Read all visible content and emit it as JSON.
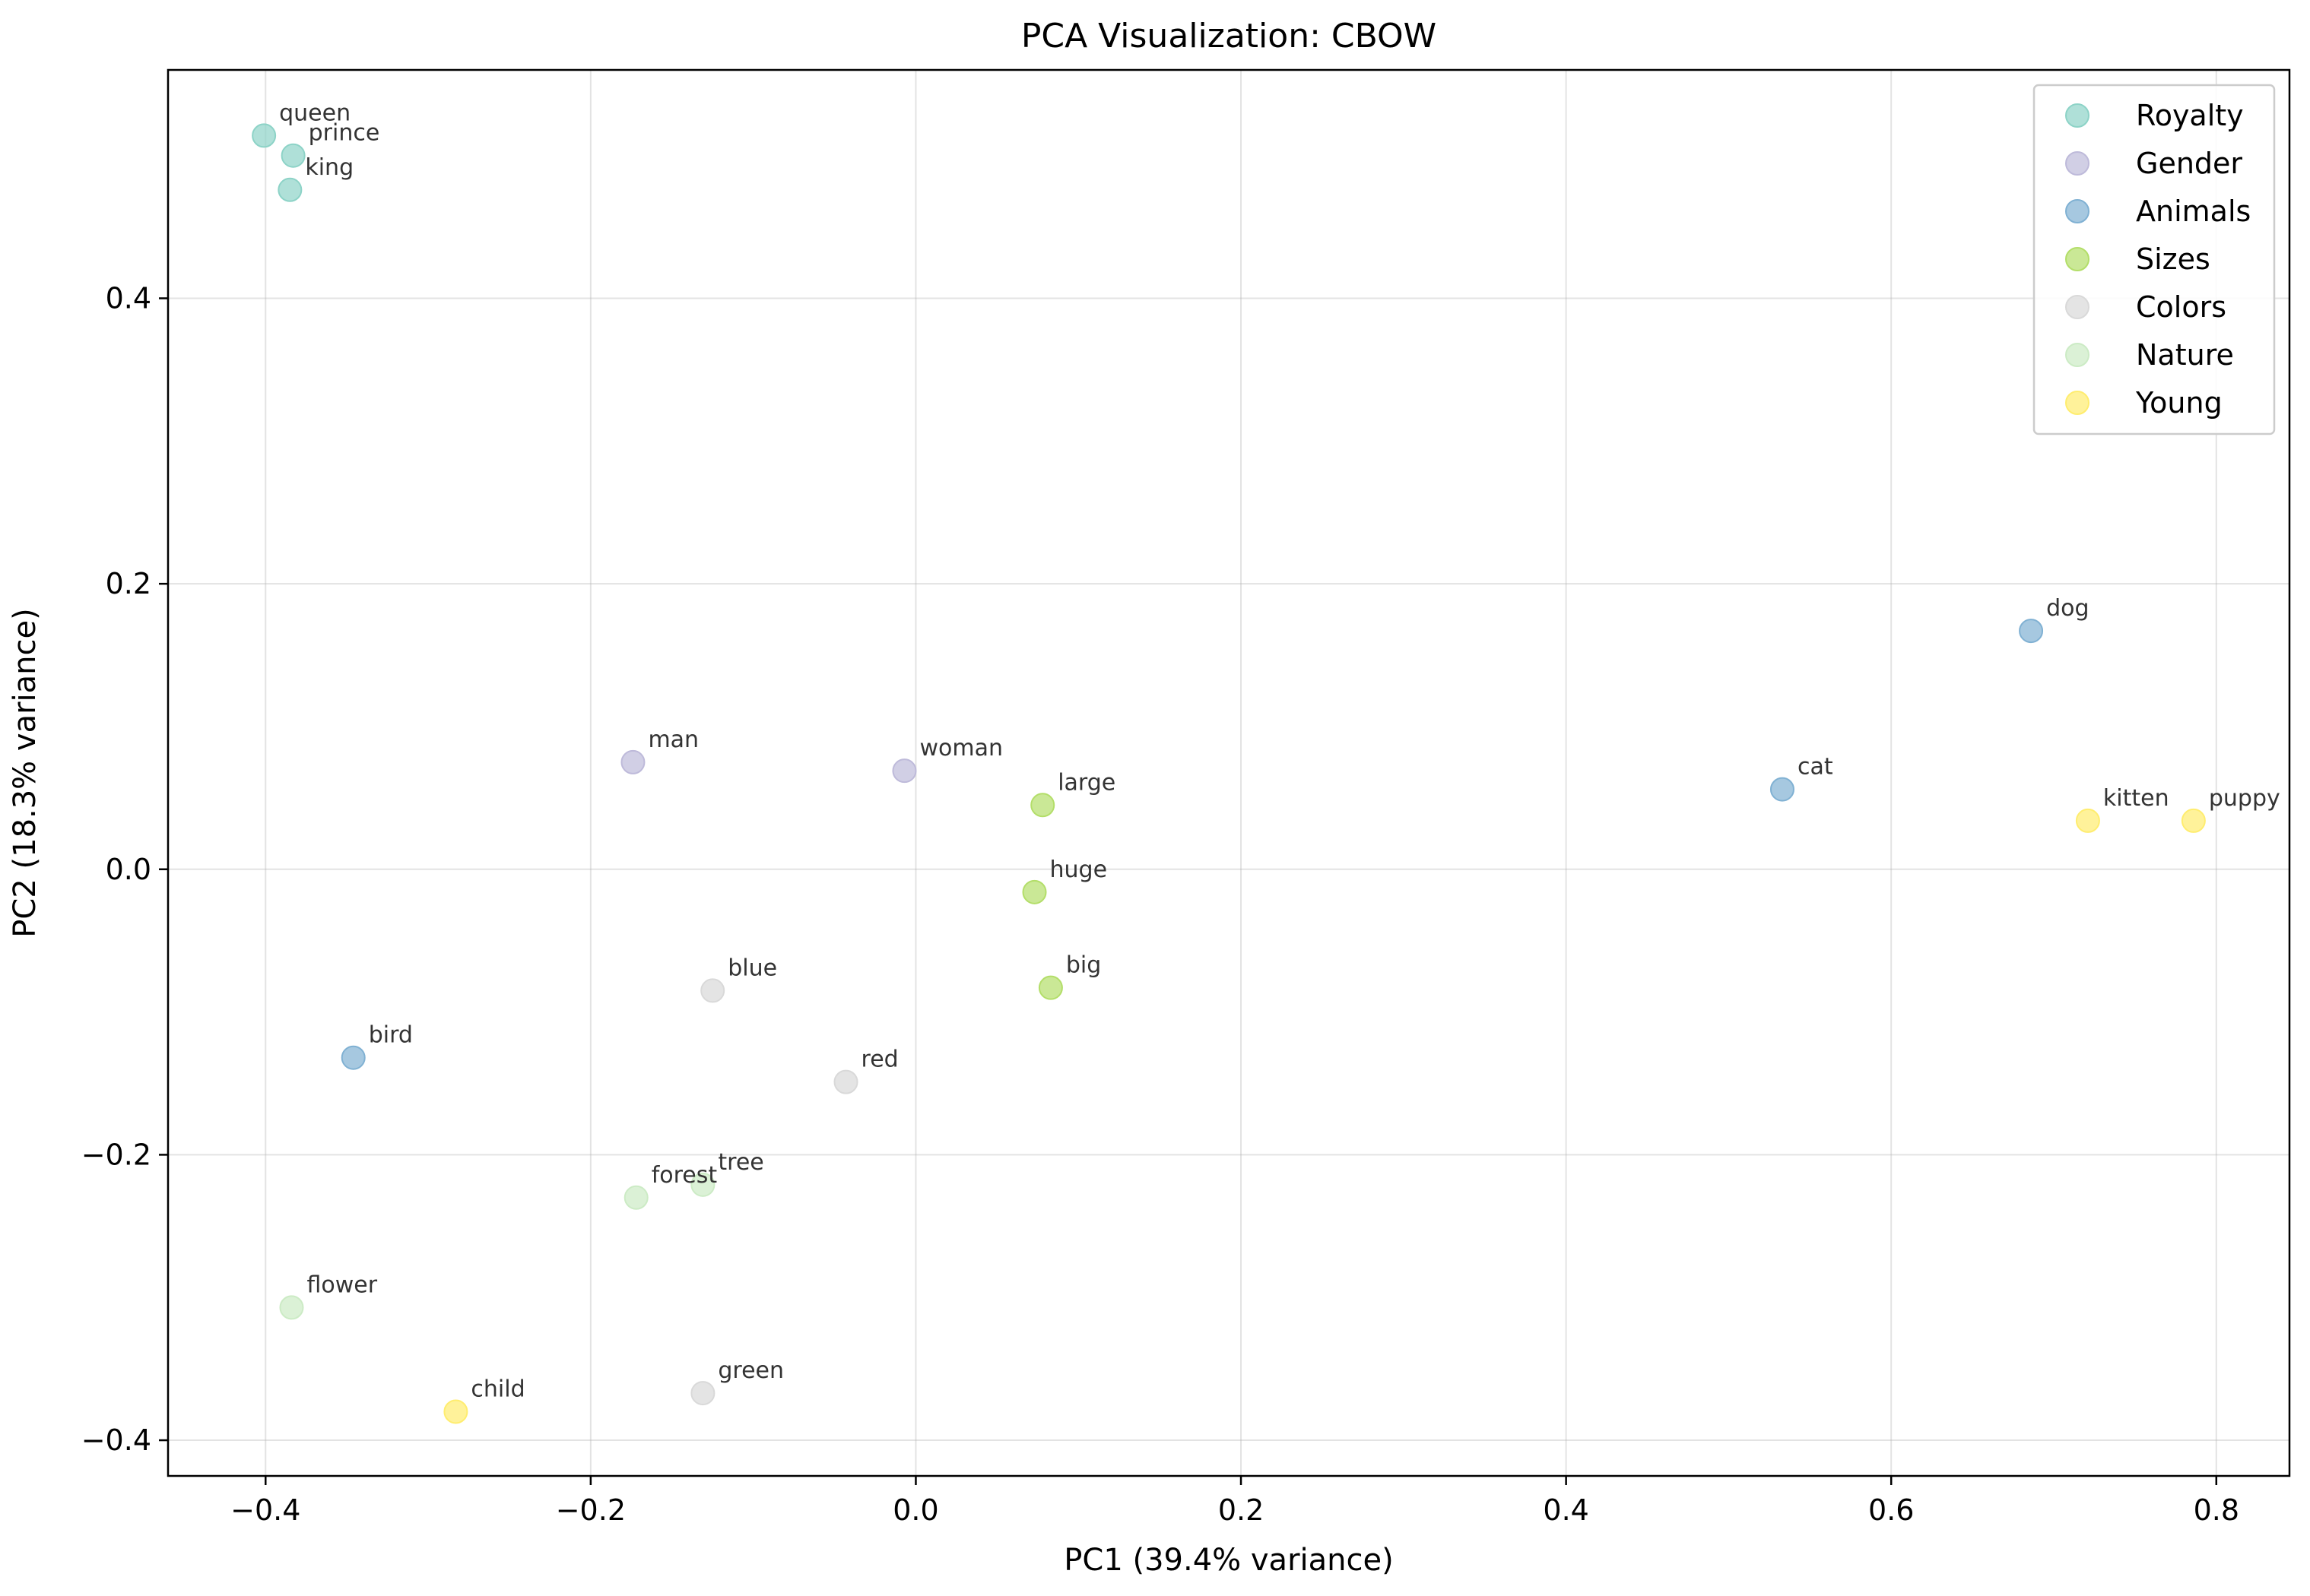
{
  "chart_data": {
    "type": "scatter",
    "title": "PCA Visualization: CBOW",
    "xlabel": "PC1 (39.4% variance)",
    "ylabel": "PC2 (18.3% variance)",
    "xlim": [
      -0.46,
      0.845
    ],
    "ylim": [
      -0.425,
      0.56
    ],
    "xticks": [
      -0.4,
      -0.2,
      0.0,
      0.2,
      0.4,
      0.6,
      0.8
    ],
    "yticks": [
      -0.4,
      -0.2,
      0.0,
      0.2,
      0.4
    ],
    "xtick_labels": [
      "−0.4",
      "−0.2",
      "0.0",
      "0.2",
      "0.4",
      "0.6",
      "0.8"
    ],
    "ytick_labels": [
      "−0.4",
      "−0.2",
      "0.0",
      "0.2",
      "0.4"
    ],
    "grid": true,
    "legend_position": "top-right",
    "series": [
      {
        "name": "Royalty",
        "color": "#8dd3c7",
        "points": [
          {
            "label": "queen",
            "x": -0.401,
            "y": 0.514
          },
          {
            "label": "prince",
            "x": -0.383,
            "y": 0.5
          },
          {
            "label": "king",
            "x": -0.385,
            "y": 0.476
          }
        ]
      },
      {
        "name": "Gender",
        "color": "#bebada",
        "points": [
          {
            "label": "man",
            "x": -0.174,
            "y": 0.075
          },
          {
            "label": "woman",
            "x": -0.007,
            "y": 0.069
          }
        ]
      },
      {
        "name": "Animals",
        "color": "#80b1d3",
        "points": [
          {
            "label": "dog",
            "x": 0.686,
            "y": 0.167
          },
          {
            "label": "cat",
            "x": 0.533,
            "y": 0.056
          },
          {
            "label": "bird",
            "x": -0.346,
            "y": -0.132
          }
        ]
      },
      {
        "name": "Sizes",
        "color": "#b3de69",
        "points": [
          {
            "label": "large",
            "x": 0.078,
            "y": 0.045
          },
          {
            "label": "huge",
            "x": 0.073,
            "y": -0.016
          },
          {
            "label": "big",
            "x": 0.083,
            "y": -0.083
          }
        ]
      },
      {
        "name": "Colors",
        "color": "#d9d9d9",
        "points": [
          {
            "label": "blue",
            "x": -0.125,
            "y": -0.085
          },
          {
            "label": "red",
            "x": -0.043,
            "y": -0.149
          },
          {
            "label": "green",
            "x": -0.131,
            "y": -0.367
          }
        ]
      },
      {
        "name": "Nature",
        "color": "#ccebc5",
        "points": [
          {
            "label": "forest",
            "x": -0.172,
            "y": -0.23
          },
          {
            "label": "tree",
            "x": -0.131,
            "y": -0.221
          },
          {
            "label": "flower",
            "x": -0.384,
            "y": -0.307
          }
        ]
      },
      {
        "name": "Young",
        "color": "#ffed6f",
        "points": [
          {
            "label": "kitten",
            "x": 0.721,
            "y": 0.034
          },
          {
            "label": "puppy",
            "x": 0.786,
            "y": 0.034
          },
          {
            "label": "child",
            "x": -0.283,
            "y": -0.38
          }
        ]
      }
    ]
  }
}
